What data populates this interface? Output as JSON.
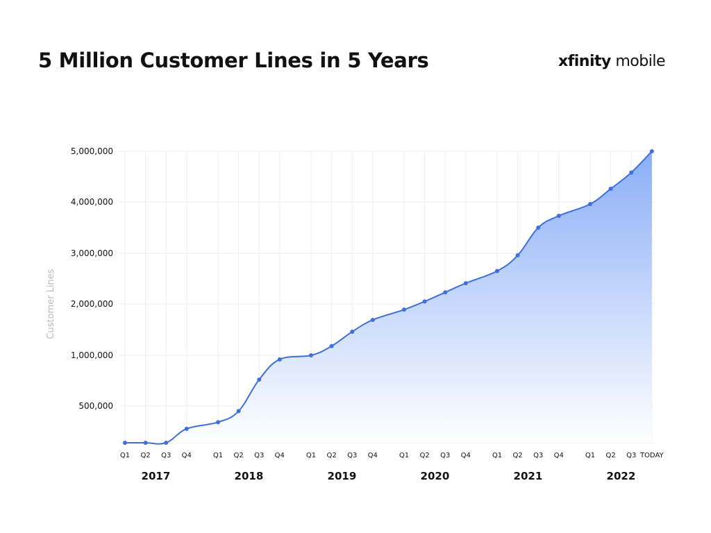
{
  "title": "5 Million Customer Lines in 5 Years",
  "logo": {
    "brand": "xfinity",
    "product": "mobile"
  },
  "colors": {
    "line": "#3f6fd8",
    "fill_top": "#8aaef7",
    "fill_bottom": "#ffffff",
    "grid": "#eeeeee",
    "axis_label": "#bbbbbb"
  },
  "chart_data": {
    "type": "area",
    "title": "5 Million Customer Lines in 5 Years",
    "ylabel": "Customer Lines",
    "xlabel": "",
    "y_ticks": [
      500000,
      1000000,
      2000000,
      3000000,
      4000000,
      5000000
    ],
    "y_tick_labels": [
      "500,000",
      "1,000,000",
      "2,000,000",
      "3,000,000",
      "4,000,000",
      "5,000,000"
    ],
    "y_scale": "piecewise (0–500,000 and 500,000–1,000,000 segments share the spacing of 1,000,000 steps)",
    "ylim": [
      0,
      5000000
    ],
    "grid": true,
    "years": [
      "2017",
      "2018",
      "2019",
      "2020",
      "2021",
      "2022"
    ],
    "categories": [
      "Q1",
      "Q2",
      "Q3",
      "Q4",
      "Q1",
      "Q2",
      "Q3",
      "Q4",
      "Q1",
      "Q2",
      "Q3",
      "Q4",
      "Q1",
      "Q2",
      "Q3",
      "Q4",
      "Q1",
      "Q2",
      "Q3",
      "Q4",
      "Q1",
      "Q2",
      "Q3",
      "TODAY"
    ],
    "values": [
      0,
      0,
      0,
      190000,
      280000,
      430000,
      760000,
      960000,
      1000000,
      1180000,
      1460000,
      1690000,
      1890000,
      2050000,
      2230000,
      2410000,
      2650000,
      2960000,
      3500000,
      3730000,
      3960000,
      4260000,
      4580000,
      5000000
    ]
  }
}
